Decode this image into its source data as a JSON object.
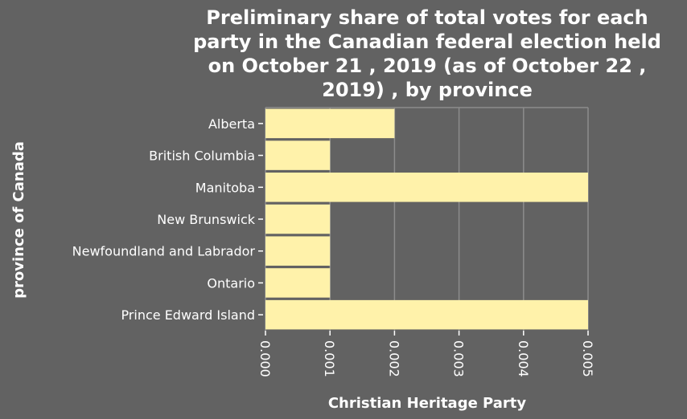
{
  "chart_data": {
    "type": "bar",
    "orientation": "horizontal",
    "title": "Preliminary share of total votes for each party in the Canadian federal election held on October 21 , 2019 (as of October 22 , 2019) , by province",
    "title_lines": [
      "Preliminary share of total votes for each",
      "party in the Canadian federal election held",
      "on October 21 , 2019 (as of October 22 ,",
      "2019) , by province"
    ],
    "xlabel": "Christian Heritage Party",
    "ylabel": "province of Canada",
    "categories": [
      "Alberta",
      "British Columbia",
      "Manitoba",
      "New Brunswick",
      "Newfoundland and Labrador",
      "Ontario",
      "Prince Edward Island"
    ],
    "values": [
      0.002,
      0.001,
      0.005,
      0.001,
      0.001,
      0.001,
      0.005
    ],
    "xlim": [
      0,
      0.005
    ],
    "xticks": [
      "0.000",
      "0.001",
      "0.002",
      "0.003",
      "0.004",
      "0.005"
    ],
    "grid": true,
    "colors": {
      "background": "#626262",
      "bar": "#fff2aa",
      "grid": "#8c8c8c",
      "text": "#ffffff"
    }
  }
}
